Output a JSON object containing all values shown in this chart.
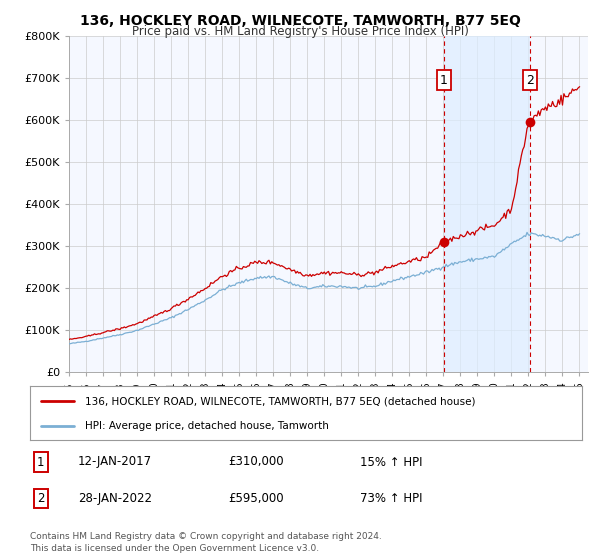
{
  "title": "136, HOCKLEY ROAD, WILNECOTE, TAMWORTH, B77 5EQ",
  "subtitle": "Price paid vs. HM Land Registry's House Price Index (HPI)",
  "legend_line1": "136, HOCKLEY ROAD, WILNECOTE, TAMWORTH, B77 5EQ (detached house)",
  "legend_line2": "HPI: Average price, detached house, Tamworth",
  "table_rows": [
    {
      "num": "1",
      "date": "12-JAN-2017",
      "price": "£310,000",
      "hpi": "15% ↑ HPI"
    },
    {
      "num": "2",
      "date": "28-JAN-2022",
      "price": "£595,000",
      "hpi": "73% ↑ HPI"
    }
  ],
  "footnote1": "Contains HM Land Registry data © Crown copyright and database right 2024.",
  "footnote2": "This data is licensed under the Open Government Licence v3.0.",
  "sale1_year": 2017.04,
  "sale1_price": 310000,
  "sale2_year": 2022.07,
  "sale2_price": 595000,
  "ylim": [
    0,
    800000
  ],
  "xlim_start": 1995.0,
  "xlim_end": 2025.5,
  "red_color": "#cc0000",
  "blue_color": "#7bafd4",
  "shade_color": "#ddeeff",
  "background_color": "#ffffff",
  "grid_color": "#cccccc",
  "chart_bg": "#f5f8ff"
}
